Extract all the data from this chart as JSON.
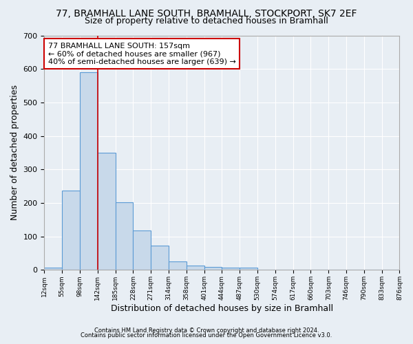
{
  "title1": "77, BRAMHALL LANE SOUTH, BRAMHALL, STOCKPORT, SK7 2EF",
  "title2": "Size of property relative to detached houses in Bramhall",
  "xlabel": "Distribution of detached houses by size in Bramhall",
  "ylabel": "Number of detached properties",
  "footnote1": "Contains HM Land Registry data © Crown copyright and database right 2024.",
  "footnote2": "Contains public sector information licensed under the Open Government Licence v3.0.",
  "bin_labels": [
    "12sqm",
    "55sqm",
    "98sqm",
    "142sqm",
    "185sqm",
    "228sqm",
    "271sqm",
    "314sqm",
    "358sqm",
    "401sqm",
    "444sqm",
    "487sqm",
    "530sqm",
    "574sqm",
    "617sqm",
    "660sqm",
    "703sqm",
    "746sqm",
    "790sqm",
    "833sqm",
    "876sqm"
  ],
  "bar_values": [
    7,
    237,
    590,
    350,
    203,
    117,
    73,
    25,
    14,
    9,
    8,
    7,
    0,
    0,
    0,
    0,
    0,
    0,
    0,
    0
  ],
  "bar_color": "#c8d9ea",
  "bar_edge_color": "#5b9bd5",
  "annotation_line1": "77 BRAMHALL LANE SOUTH: 157sqm",
  "annotation_line2": "← 60% of detached houses are smaller (967)",
  "annotation_line3": "40% of semi-detached houses are larger (639) →",
  "red_line_x": 3.0,
  "ylim": [
    0,
    700
  ],
  "yticks": [
    0,
    100,
    200,
    300,
    400,
    500,
    600,
    700
  ],
  "background_color": "#e8eef4",
  "grid_color": "#ffffff",
  "annotation_box_color": "#ffffff",
  "annotation_box_edge": "#cc0000",
  "red_line_color": "#cc0000",
  "title1_fontsize": 10,
  "title2_fontsize": 9,
  "xlabel_fontsize": 9,
  "ylabel_fontsize": 9,
  "annotation_fontsize": 8
}
